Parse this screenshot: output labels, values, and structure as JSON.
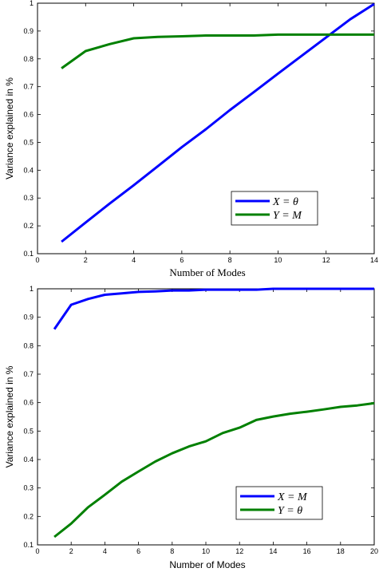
{
  "chart_data": [
    {
      "type": "line",
      "xlabel": "Number of Modes",
      "ylabel": "Variance explained in %",
      "xlim": [
        0,
        14
      ],
      "ylim": [
        0.1,
        1
      ],
      "xticks": [
        "0",
        "2",
        "4",
        "6",
        "8",
        "10",
        "12",
        "14"
      ],
      "yticks": [
        "0.1",
        "0.2",
        "0.3",
        "0.4",
        "0.5",
        "0.6",
        "0.7",
        "0.8",
        "0.9",
        "1"
      ],
      "grid": false,
      "legend_position": "lower-right",
      "series": [
        {
          "name": "X = θ",
          "color": "#0000ff",
          "x": [
            1,
            2,
            3,
            4,
            5,
            6,
            7,
            8,
            9,
            10,
            11,
            12,
            13,
            14
          ],
          "y": [
            0.143,
            0.212,
            0.28,
            0.346,
            0.414,
            0.483,
            0.547,
            0.616,
            0.681,
            0.747,
            0.812,
            0.877,
            0.942,
            0.997
          ]
        },
        {
          "name": "Y = M",
          "color": "#008000",
          "x": [
            1,
            2,
            3,
            4,
            5,
            6,
            7,
            8,
            9,
            10,
            11,
            12,
            13,
            14
          ],
          "y": [
            0.766,
            0.828,
            0.853,
            0.874,
            0.879,
            0.881,
            0.884,
            0.884,
            0.884,
            0.887,
            0.887,
            0.887,
            0.887,
            0.887
          ]
        }
      ]
    },
    {
      "type": "line",
      "xlabel": "Number of Modes",
      "ylabel": "Variance explained in %",
      "xlim": [
        0,
        20
      ],
      "ylim": [
        0.1,
        1
      ],
      "xticks": [
        "0",
        "2",
        "4",
        "6",
        "8",
        "10",
        "12",
        "14",
        "16",
        "18",
        "20"
      ],
      "yticks": [
        "0.1",
        "0.2",
        "0.3",
        "0.4",
        "0.5",
        "0.6",
        "0.7",
        "0.8",
        "0.9",
        "1"
      ],
      "grid": false,
      "legend_position": "lower-right",
      "series": [
        {
          "name": "X = M",
          "color": "#0000ff",
          "x": [
            1,
            2,
            3,
            4,
            5,
            6,
            7,
            8,
            9,
            10,
            11,
            12,
            13,
            14,
            15,
            16,
            17,
            18,
            19,
            20
          ],
          "y": [
            0.858,
            0.944,
            0.964,
            0.979,
            0.984,
            0.989,
            0.991,
            0.994,
            0.994,
            0.997,
            0.997,
            0.997,
            0.997,
            1.0,
            1.0,
            1.0,
            1.0,
            1.0,
            1.0,
            1.0
          ]
        },
        {
          "name": "Y = θ",
          "color": "#008000",
          "x": [
            1,
            2,
            3,
            4,
            5,
            6,
            7,
            8,
            9,
            10,
            11,
            12,
            13,
            14,
            15,
            16,
            17,
            18,
            19,
            20
          ],
          "y": [
            0.128,
            0.175,
            0.232,
            0.276,
            0.322,
            0.358,
            0.393,
            0.422,
            0.446,
            0.464,
            0.493,
            0.512,
            0.539,
            0.551,
            0.561,
            0.568,
            0.576,
            0.585,
            0.59,
            0.598
          ]
        }
      ]
    }
  ]
}
